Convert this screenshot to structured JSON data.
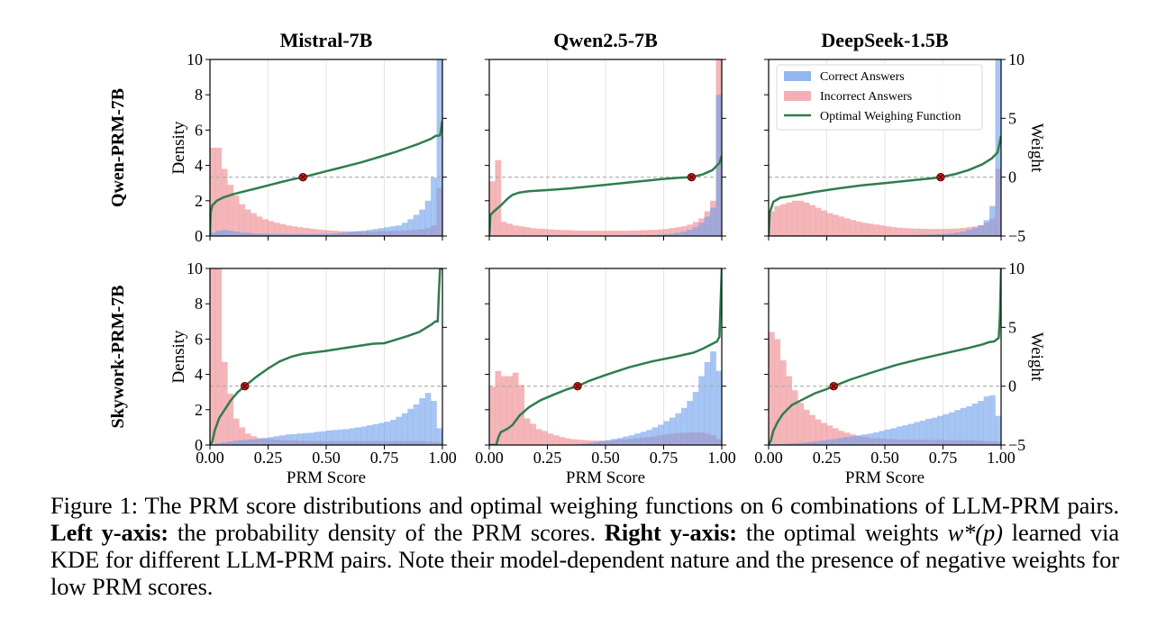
{
  "chart_data": {
    "type": "histogram+line",
    "grid_layout": {
      "rows": 2,
      "cols": 3
    },
    "col_titles": [
      "Mistral-7B",
      "Qwen2.5-7B",
      "DeepSeek-1.5B"
    ],
    "row_labels": [
      "Qwen-PRM-7B",
      "Skywork-PRM-7B"
    ],
    "xlabel": "PRM Score",
    "ylabel_left": "Density",
    "ylabel_right": "Weight",
    "xlim": [
      0,
      1
    ],
    "ylim_left": [
      0,
      10
    ],
    "ylim_right": [
      -5,
      10
    ],
    "x_ticks": [
      "0.00",
      "0.25",
      "0.50",
      "0.75",
      "1.00"
    ],
    "x_tick_values": [
      0,
      0.25,
      0.5,
      0.75,
      1.0
    ],
    "left_ticks": [
      "0",
      "2",
      "4",
      "6",
      "8",
      "10"
    ],
    "left_tick_values": [
      0,
      2,
      4,
      6,
      8,
      10
    ],
    "right_ticks": [
      "−5",
      "0",
      "5",
      "10"
    ],
    "right_tick_values": [
      -5,
      0,
      5,
      10
    ],
    "grid": "vertical",
    "reference_line": {
      "weight": 0,
      "style": "dashed"
    },
    "bins": 40,
    "legend": {
      "placement": "top-right of panel row1-col3",
      "entries": [
        {
          "label": "Correct Answers",
          "kind": "patch",
          "color": "#6d9eeb"
        },
        {
          "label": "Incorrect Answers",
          "kind": "patch",
          "color": "#ee8f94"
        },
        {
          "label": "Optimal Weighing Function",
          "kind": "line",
          "color": "#2e7d4f"
        }
      ]
    },
    "colors": {
      "correct": "#6d9eeb",
      "incorrect": "#ee8f94",
      "weight_line": "#2e7d4f",
      "marker_fill": "#cc1f1f",
      "marker_edge": "#5a0000",
      "reference": "#aaaaaa"
    },
    "panels": [
      {
        "row": 0,
        "col": 0,
        "name": "Qwen-PRM-7B / Mistral-7B",
        "zero_crossing": {
          "x": 0.4,
          "weight": 0
        },
        "incorrect": [
          5.0,
          5.0,
          3.8,
          2.9,
          2.3,
          1.8,
          1.5,
          1.3,
          1.1,
          0.95,
          0.85,
          0.75,
          0.68,
          0.6,
          0.55,
          0.5,
          0.46,
          0.42,
          0.38,
          0.35,
          0.32,
          0.3,
          0.28,
          0.27,
          0.26,
          0.26,
          0.26,
          0.27,
          0.27,
          0.28,
          0.28,
          0.29,
          0.3,
          0.31,
          0.33,
          0.35,
          0.38,
          0.45,
          0.6,
          2.7
        ],
        "correct": [
          0.2,
          0.3,
          0.35,
          0.3,
          0.25,
          0.2,
          0.18,
          0.15,
          0.14,
          0.13,
          0.12,
          0.12,
          0.11,
          0.1,
          0.1,
          0.1,
          0.1,
          0.1,
          0.11,
          0.12,
          0.13,
          0.15,
          0.18,
          0.2,
          0.25,
          0.28,
          0.3,
          0.35,
          0.4,
          0.45,
          0.5,
          0.55,
          0.6,
          0.75,
          0.95,
          1.2,
          1.5,
          2.0,
          3.3,
          10.0
        ],
        "weight": {
          "x": [
            0.0,
            0.003,
            0.01,
            0.03,
            0.06,
            0.1,
            0.15,
            0.2,
            0.25,
            0.3,
            0.35,
            0.4,
            0.45,
            0.5,
            0.55,
            0.6,
            0.65,
            0.7,
            0.75,
            0.8,
            0.85,
            0.9,
            0.95,
            0.97,
            0.99,
            1.0
          ],
          "y": [
            -5.0,
            -3.0,
            -2.4,
            -2.0,
            -1.7,
            -1.45,
            -1.2,
            -0.95,
            -0.7,
            -0.45,
            -0.2,
            0.0,
            0.25,
            0.5,
            0.75,
            1.0,
            1.25,
            1.55,
            1.85,
            2.15,
            2.5,
            2.85,
            3.25,
            3.5,
            3.55,
            4.8
          ]
        }
      },
      {
        "row": 0,
        "col": 1,
        "name": "Qwen-PRM-7B / Qwen2.5-7B",
        "zero_crossing": {
          "x": 0.87,
          "weight": 0
        },
        "incorrect": [
          3.1,
          4.3,
          0.8,
          0.7,
          0.6,
          0.55,
          0.5,
          0.45,
          0.42,
          0.4,
          0.38,
          0.36,
          0.34,
          0.33,
          0.32,
          0.31,
          0.3,
          0.3,
          0.3,
          0.3,
          0.3,
          0.3,
          0.3,
          0.3,
          0.31,
          0.32,
          0.33,
          0.34,
          0.35,
          0.37,
          0.4,
          0.45,
          0.5,
          0.55,
          0.65,
          0.8,
          1.0,
          1.4,
          2.0,
          10.0
        ],
        "correct": [
          0.02,
          0.02,
          0.02,
          0.02,
          0.02,
          0.02,
          0.02,
          0.02,
          0.02,
          0.02,
          0.02,
          0.02,
          0.02,
          0.02,
          0.02,
          0.02,
          0.02,
          0.02,
          0.02,
          0.02,
          0.02,
          0.02,
          0.02,
          0.02,
          0.03,
          0.03,
          0.04,
          0.05,
          0.06,
          0.08,
          0.1,
          0.13,
          0.18,
          0.25,
          0.35,
          0.5,
          0.75,
          1.1,
          1.6,
          8.0
        ],
        "weight": {
          "x": [
            0.0,
            0.005,
            0.02,
            0.05,
            0.08,
            0.1,
            0.13,
            0.17,
            0.25,
            0.35,
            0.45,
            0.55,
            0.65,
            0.75,
            0.82,
            0.87,
            0.92,
            0.96,
            0.99,
            1.0
          ],
          "y": [
            -5.0,
            -3.2,
            -2.9,
            -2.4,
            -1.8,
            -1.5,
            -1.3,
            -1.2,
            -1.1,
            -0.95,
            -0.75,
            -0.55,
            -0.35,
            -0.15,
            -0.05,
            0.0,
            0.25,
            0.6,
            1.2,
            1.8
          ]
        }
      },
      {
        "row": 0,
        "col": 2,
        "name": "Qwen-PRM-7B / DeepSeek-1.5B",
        "zero_crossing": {
          "x": 0.74,
          "weight": 0
        },
        "incorrect": [
          1.4,
          1.7,
          1.8,
          1.9,
          2.0,
          2.0,
          1.9,
          1.75,
          1.6,
          1.45,
          1.3,
          1.2,
          1.1,
          1.0,
          0.9,
          0.82,
          0.75,
          0.7,
          0.65,
          0.6,
          0.55,
          0.5,
          0.47,
          0.45,
          0.43,
          0.42,
          0.41,
          0.4,
          0.4,
          0.4,
          0.4,
          0.41,
          0.43,
          0.46,
          0.5,
          0.55,
          0.62,
          0.75,
          1.0,
          3.8
        ],
        "correct": [
          0.05,
          0.05,
          0.05,
          0.05,
          0.05,
          0.05,
          0.05,
          0.05,
          0.05,
          0.05,
          0.05,
          0.05,
          0.05,
          0.05,
          0.05,
          0.05,
          0.05,
          0.05,
          0.05,
          0.05,
          0.05,
          0.05,
          0.05,
          0.05,
          0.06,
          0.06,
          0.07,
          0.08,
          0.09,
          0.1,
          0.12,
          0.15,
          0.2,
          0.25,
          0.35,
          0.45,
          0.6,
          0.9,
          1.7,
          10.0
        ],
        "weight": {
          "x": [
            0.0,
            0.005,
            0.02,
            0.05,
            0.1,
            0.2,
            0.3,
            0.4,
            0.5,
            0.6,
            0.7,
            0.74,
            0.8,
            0.86,
            0.92,
            0.96,
            0.985,
            1.0
          ],
          "y": [
            -5.0,
            -3.0,
            -2.1,
            -1.75,
            -1.6,
            -1.25,
            -0.95,
            -0.7,
            -0.5,
            -0.3,
            -0.1,
            0.0,
            0.25,
            0.6,
            1.1,
            1.6,
            2.1,
            3.5
          ]
        }
      },
      {
        "row": 1,
        "col": 0,
        "name": "Skywork-PRM-7B / Mistral-7B",
        "zero_crossing": {
          "x": 0.15,
          "weight": 0
        },
        "incorrect": [
          10.0,
          10.0,
          4.7,
          2.9,
          1.5,
          1.0,
          0.65,
          0.5,
          0.4,
          0.35,
          0.33,
          0.3,
          0.28,
          0.26,
          0.25,
          0.24,
          0.23,
          0.22,
          0.22,
          0.22,
          0.22,
          0.22,
          0.22,
          0.22,
          0.22,
          0.22,
          0.22,
          0.22,
          0.22,
          0.22,
          0.22,
          0.22,
          0.22,
          0.22,
          0.22,
          0.22,
          0.22,
          0.2,
          0.18,
          0.15
        ],
        "correct": [
          0.05,
          0.1,
          0.15,
          0.2,
          0.25,
          0.28,
          0.3,
          0.32,
          0.35,
          0.4,
          0.45,
          0.5,
          0.55,
          0.6,
          0.62,
          0.65,
          0.68,
          0.7,
          0.75,
          0.78,
          0.82,
          0.85,
          0.88,
          0.9,
          0.95,
          1.0,
          1.05,
          1.12,
          1.18,
          1.25,
          1.32,
          1.42,
          1.6,
          1.8,
          2.05,
          2.3,
          2.65,
          2.95,
          2.5,
          0.95
        ],
        "weight": {
          "x": [
            0.0,
            0.01,
            0.02,
            0.04,
            0.06,
            0.09,
            0.12,
            0.15,
            0.2,
            0.25,
            0.3,
            0.35,
            0.4,
            0.5,
            0.6,
            0.7,
            0.75,
            0.8,
            0.85,
            0.9,
            0.95,
            0.97,
            0.98,
            0.985,
            0.99,
            1.0
          ],
          "y": [
            -5.0,
            -4.7,
            -3.8,
            -2.7,
            -2.1,
            -1.2,
            -0.5,
            0.0,
            0.8,
            1.5,
            2.1,
            2.5,
            2.75,
            3.0,
            3.3,
            3.6,
            3.65,
            3.95,
            4.25,
            4.6,
            5.2,
            5.5,
            5.5,
            8.0,
            10.0,
            10.0
          ]
        }
      },
      {
        "row": 1,
        "col": 1,
        "name": "Skywork-PRM-7B / Qwen2.5-7B",
        "zero_crossing": {
          "x": 0.38,
          "weight": 0
        },
        "incorrect": [
          3.3,
          4.2,
          3.9,
          3.9,
          4.1,
          3.4,
          1.5,
          1.2,
          0.9,
          0.8,
          0.65,
          0.55,
          0.45,
          0.38,
          0.33,
          0.3,
          0.28,
          0.26,
          0.25,
          0.25,
          0.26,
          0.28,
          0.3,
          0.32,
          0.35,
          0.38,
          0.42,
          0.45,
          0.5,
          0.55,
          0.6,
          0.65,
          0.68,
          0.7,
          0.72,
          0.72,
          0.7,
          0.65,
          0.55,
          0.35
        ],
        "correct": [
          0.02,
          0.02,
          0.02,
          0.02,
          0.02,
          0.02,
          0.02,
          0.02,
          0.02,
          0.02,
          0.02,
          0.02,
          0.02,
          0.02,
          0.03,
          0.05,
          0.08,
          0.12,
          0.17,
          0.22,
          0.28,
          0.34,
          0.4,
          0.48,
          0.55,
          0.65,
          0.75,
          0.85,
          1.0,
          1.15,
          1.35,
          1.55,
          1.8,
          2.1,
          2.5,
          3.0,
          3.9,
          4.7,
          5.3,
          4.2
        ],
        "weight": {
          "x": [
            0.0,
            0.03,
            0.04,
            0.05,
            0.08,
            0.1,
            0.13,
            0.17,
            0.22,
            0.28,
            0.33,
            0.38,
            0.43,
            0.5,
            0.6,
            0.7,
            0.8,
            0.88,
            0.92,
            0.95,
            0.98,
            0.99,
            1.0
          ],
          "y": [
            -5.0,
            -5.0,
            -4.3,
            -3.9,
            -3.6,
            -3.3,
            -2.5,
            -1.8,
            -1.2,
            -0.7,
            -0.3,
            0.0,
            0.45,
            0.95,
            1.6,
            2.1,
            2.5,
            2.85,
            3.2,
            3.5,
            3.8,
            4.2,
            10.0
          ]
        }
      },
      {
        "row": 1,
        "col": 2,
        "name": "Skywork-PRM-7B / DeepSeek-1.5B",
        "zero_crossing": {
          "x": 0.28,
          "weight": 0
        },
        "incorrect": [
          6.4,
          6.0,
          4.8,
          3.9,
          3.1,
          2.4,
          2.0,
          1.7,
          1.45,
          1.25,
          1.1,
          0.95,
          0.8,
          0.7,
          0.6,
          0.5,
          0.45,
          0.4,
          0.38,
          0.36,
          0.34,
          0.33,
          0.32,
          0.31,
          0.3,
          0.3,
          0.3,
          0.29,
          0.29,
          0.29,
          0.28,
          0.28,
          0.27,
          0.27,
          0.26,
          0.26,
          0.25,
          0.22,
          0.2,
          0.18
        ],
        "correct": [
          0.05,
          0.05,
          0.06,
          0.08,
          0.1,
          0.12,
          0.15,
          0.18,
          0.22,
          0.26,
          0.3,
          0.35,
          0.4,
          0.45,
          0.5,
          0.55,
          0.6,
          0.65,
          0.72,
          0.8,
          0.88,
          0.95,
          1.05,
          1.12,
          1.2,
          1.3,
          1.38,
          1.48,
          1.55,
          1.65,
          1.75,
          1.85,
          1.98,
          2.1,
          2.2,
          2.35,
          2.5,
          2.75,
          2.82,
          1.65
        ],
        "weight": {
          "x": [
            0.0,
            0.01,
            0.02,
            0.04,
            0.06,
            0.08,
            0.1,
            0.14,
            0.2,
            0.25,
            0.28,
            0.35,
            0.45,
            0.55,
            0.65,
            0.75,
            0.85,
            0.92,
            0.95,
            0.97,
            0.99,
            0.995,
            1.0
          ],
          "y": [
            -5.0,
            -4.6,
            -3.8,
            -3.0,
            -2.4,
            -2.0,
            -1.6,
            -1.2,
            -0.6,
            -0.25,
            0.0,
            0.55,
            1.2,
            1.8,
            2.3,
            2.75,
            3.2,
            3.55,
            3.75,
            3.8,
            4.1,
            6.0,
            10.0
          ]
        }
      }
    ]
  },
  "caption": {
    "lead": "Figure 1: The PRM score distributions and optimal weighing functions on 6 combinations of LLM-PRM pairs. ",
    "left_label": "Left y-axis:",
    "left_text": " the probability density of the PRM scores. ",
    "right_label": "Right y-axis:",
    "right_text_pre": " the optimal weights ",
    "math": "w*(p)",
    "right_text_post": " learned via KDE for different LLM-PRM pairs. Note their model-dependent nature and the presence of negative weights for low PRM scores."
  }
}
